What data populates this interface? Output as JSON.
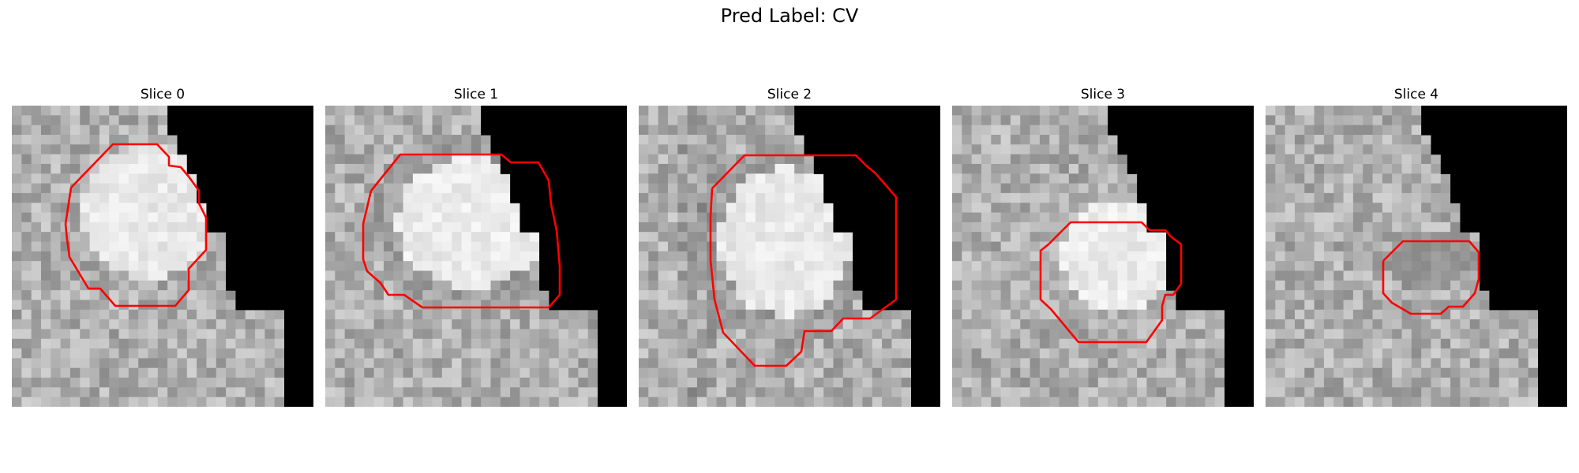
{
  "figure": {
    "title": "Pred Label: CV"
  },
  "panels": [
    {
      "title": "Slice 0",
      "contour_color": "#ff0000"
    },
    {
      "title": "Slice 1",
      "contour_color": "#ff0000"
    },
    {
      "title": "Slice 2",
      "contour_color": "#ff0000"
    },
    {
      "title": "Slice 3",
      "contour_color": "#ff0000"
    },
    {
      "title": "Slice 4",
      "contour_color": "#ff0000"
    }
  ]
}
